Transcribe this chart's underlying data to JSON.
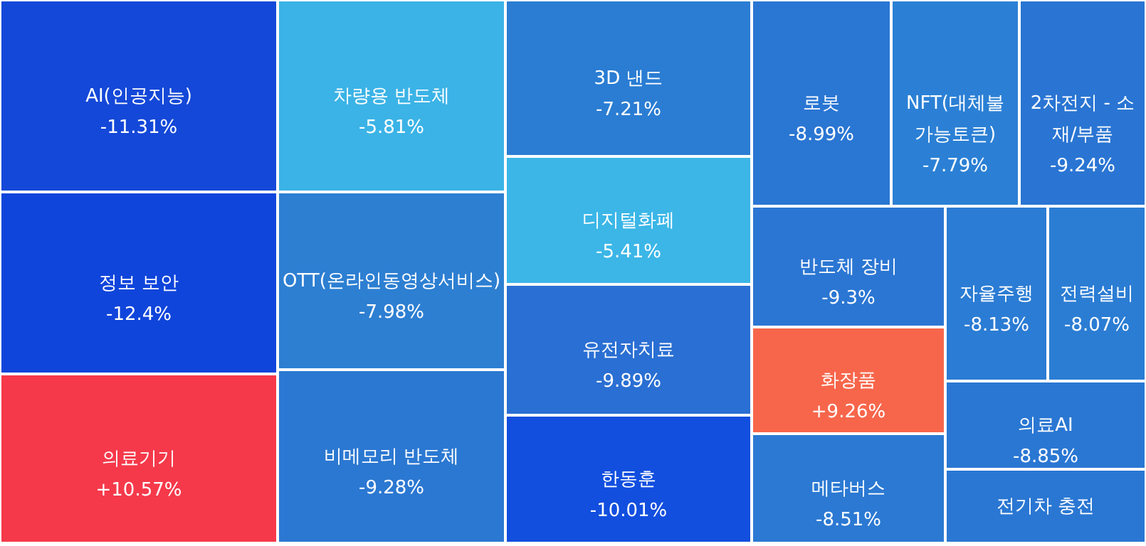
{
  "chart_data": {
    "type": "other",
    "data_labels": true,
    "categories": [
      "AI(인공지능)",
      "정보 보안",
      "의료기기",
      "차량용 반도체",
      "OTT(온라인동영상서비스)",
      "비메모리 반도체",
      "3D 낸드",
      "디지털화폐",
      "유전자치료",
      "한동훈",
      "로봇",
      "NFT(대체불가능토큰)",
      "2차전지 - 소재/부품",
      "반도체 장비",
      "화장품",
      "메타버스",
      "자율주행",
      "전력설비",
      "의료AI",
      "전기차 충전"
    ],
    "values": [
      -11.31,
      -12.4,
      10.57,
      -5.81,
      -7.98,
      -9.28,
      -7.21,
      -5.41,
      -9.89,
      -10.01,
      -8.99,
      -7.79,
      -9.24,
      -9.3,
      9.26,
      -8.51,
      -8.13,
      -8.07,
      -8.85,
      null
    ],
    "value_labels": [
      "-11.31%",
      "-12.4%",
      "+10.57%",
      "-5.81%",
      "-7.98%",
      "-9.28%",
      "-7.21%",
      "-5.41%",
      "-9.89%",
      "-10.01%",
      "-8.99%",
      "-7.79%",
      "-9.24%",
      "-9.3%",
      "+9.26%",
      "-8.51%",
      "-8.13%",
      "-8.07%",
      "-8.85%",
      null
    ],
    "colors": [
      "#1448d8",
      "#0f45db",
      "#f5394a",
      "#3bb3e6",
      "#2d7fd2",
      "#2b78d2",
      "#2a7dd3",
      "#3bb6e7",
      "#2a6fd3",
      "#124fdf",
      "#2a76d3",
      "#2b80d5",
      "#2a75d3",
      "#2b76d3",
      "#f7664b",
      "#2b79d3",
      "#2b7cd4",
      "#2b7dd4",
      "#2a77d3",
      "#2a77d3"
    ]
  }
}
